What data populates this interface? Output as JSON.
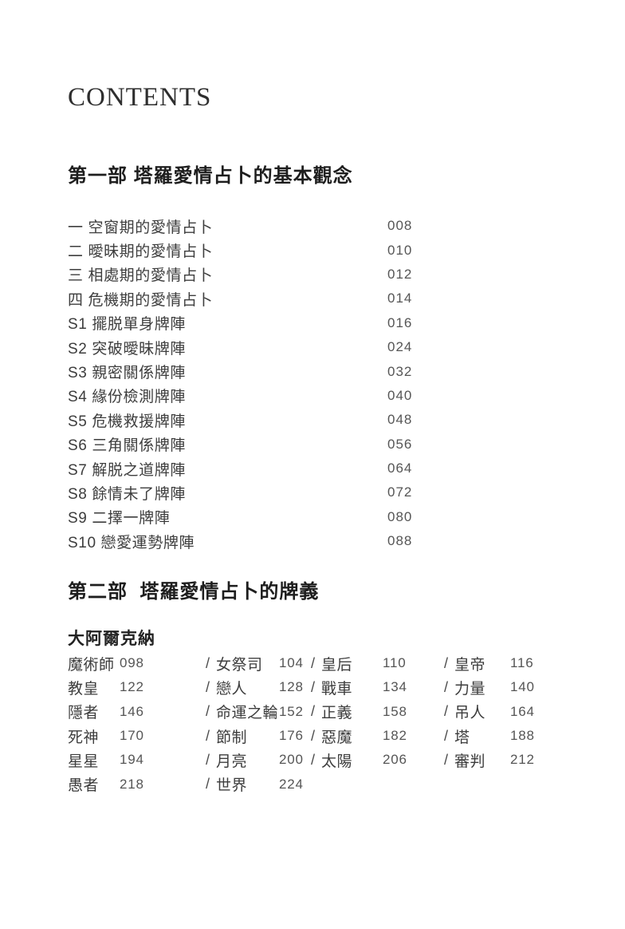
{
  "title": "CONTENTS",
  "part1": {
    "heading": "第一部 塔羅愛情占卜的基本觀念",
    "items": [
      {
        "label": "一 空窗期的愛情占卜",
        "page": "008"
      },
      {
        "label": "二 曖昧期的愛情占卜",
        "page": "010"
      },
      {
        "label": "三 相處期的愛情占卜",
        "page": "012"
      },
      {
        "label": "四 危機期的愛情占卜",
        "page": "014"
      },
      {
        "label": "S1 擺脱單身牌陣",
        "page": "016"
      },
      {
        "label": "S2 突破曖昧牌陣",
        "page": "024"
      },
      {
        "label": "S3 親密關係牌陣",
        "page": "032"
      },
      {
        "label": "S4 緣份檢測牌陣",
        "page": "040"
      },
      {
        "label": "S5 危機救援牌陣",
        "page": "048"
      },
      {
        "label": "S6 三角關係牌陣",
        "page": "056"
      },
      {
        "label": "S7 解脱之道牌陣",
        "page": "064"
      },
      {
        "label": "S8 餘情未了牌陣",
        "page": "072"
      },
      {
        "label": "S9 二擇一牌陣",
        "page": "080"
      },
      {
        "label": "S10 戀愛運勢牌陣",
        "page": "088"
      }
    ]
  },
  "part2": {
    "heading": "第二部  塔羅愛情占卜的牌義",
    "subheading": "大阿爾克納",
    "rows": [
      [
        {
          "name": "魔術師",
          "page": "098"
        },
        {
          "sep": "/",
          "name": "女祭司",
          "page": "104"
        },
        {
          "sep": "/",
          "name": "皇后",
          "page": "110"
        },
        {
          "sep": "/",
          "name": "皇帝",
          "page": "116"
        }
      ],
      [
        {
          "name": "教皇",
          "page": "122"
        },
        {
          "sep": "/",
          "name": "戀人",
          "page": "128"
        },
        {
          "sep": "/",
          "name": "戰車",
          "page": "134"
        },
        {
          "sep": "/",
          "name": "力量",
          "page": "140"
        }
      ],
      [
        {
          "name": "隱者",
          "page": "146"
        },
        {
          "sep": "/",
          "name": "命運之輪",
          "page": "152"
        },
        {
          "sep": "/",
          "name": "正義",
          "page": "158"
        },
        {
          "sep": "/",
          "name": "吊人",
          "page": "164"
        }
      ],
      [
        {
          "name": "死神",
          "page": "170"
        },
        {
          "sep": "/",
          "name": "節制",
          "page": "176"
        },
        {
          "sep": "/",
          "name": "惡魔",
          "page": "182"
        },
        {
          "sep": "/",
          "name": "塔",
          "page": "188"
        }
      ],
      [
        {
          "name": "星星",
          "page": "194"
        },
        {
          "sep": "/",
          "name": "月亮",
          "page": "200"
        },
        {
          "sep": "/",
          "name": "太陽",
          "page": "206"
        },
        {
          "sep": "/",
          "name": "審判",
          "page": "212"
        }
      ],
      [
        {
          "name": "愚者",
          "page": "218"
        },
        {
          "sep": "/",
          "name": "世界",
          "page": "224"
        }
      ]
    ]
  }
}
